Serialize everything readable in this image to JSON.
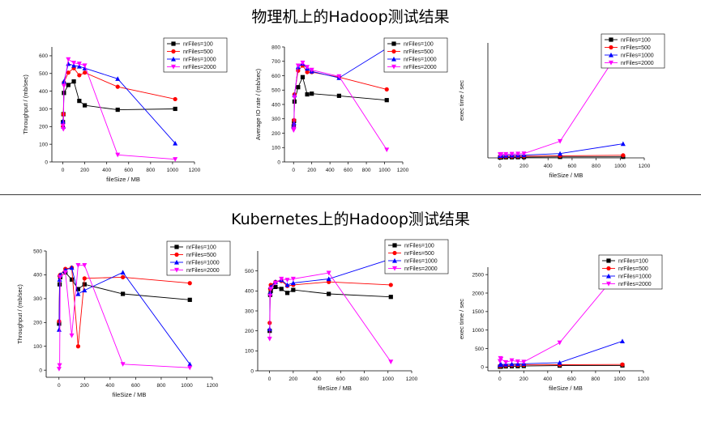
{
  "titles": {
    "top": "物理机上的Hadoop测试结果",
    "bottom": "Kubernetes上的Hadoop测试结果"
  },
  "colors": {
    "nrFiles=100": "#000000",
    "nrFiles=500": "#ff0000",
    "nrFiles=1000": "#0000ff",
    "nrFiles=2000": "#ff00ff"
  },
  "chart_data": [
    {
      "id": "physical-throughput",
      "type": "line",
      "xlabel": "fileSize / MB",
      "ylabel": "Throughput / (mb/sec)",
      "xlim": [
        -100,
        1200
      ],
      "ylim": [
        0,
        650
      ],
      "xticks": [
        0,
        200,
        400,
        600,
        800,
        1000,
        1200
      ],
      "yticks": [
        0,
        100,
        200,
        300,
        400,
        500,
        600
      ],
      "legend_position": "top-right",
      "series": [
        {
          "name": "nrFiles=100",
          "x": [
            1,
            5,
            10,
            50,
            100,
            150,
            200,
            500,
            1024
          ],
          "y": [
            225,
            270,
            390,
            435,
            455,
            345,
            320,
            295,
            300
          ]
        },
        {
          "name": "nrFiles=500",
          "x": [
            1,
            5,
            10,
            50,
            100,
            150,
            200,
            500,
            1024
          ],
          "y": [
            200,
            270,
            450,
            505,
            530,
            490,
            505,
            425,
            355
          ]
        },
        {
          "name": "nrFiles=1000",
          "x": [
            1,
            5,
            10,
            50,
            100,
            150,
            200,
            500,
            1024
          ],
          "y": [
            230,
            200,
            455,
            555,
            545,
            540,
            530,
            470,
            105
          ]
        },
        {
          "name": "nrFiles=2000",
          "x": [
            1,
            5,
            10,
            50,
            100,
            150,
            200,
            500,
            1024
          ],
          "y": [
            205,
            185,
            430,
            580,
            560,
            555,
            545,
            40,
            15
          ]
        }
      ]
    },
    {
      "id": "physical-io-rate",
      "type": "line",
      "xlabel": "",
      "ylabel": "Average IO rate / (mb/sec)",
      "xlim": [
        -100,
        1200
      ],
      "ylim": [
        0,
        800
      ],
      "xticks": [
        0,
        200,
        400,
        600,
        800,
        1000,
        1200
      ],
      "yticks": [
        0,
        100,
        200,
        300,
        400,
        500,
        600,
        700,
        800
      ],
      "legend_position": "top-right",
      "series": [
        {
          "name": "nrFiles=100",
          "x": [
            1,
            5,
            10,
            50,
            100,
            150,
            200,
            500,
            1024
          ],
          "y": [
            245,
            285,
            420,
            520,
            590,
            470,
            475,
            460,
            430
          ]
        },
        {
          "name": "nrFiles=500",
          "x": [
            1,
            5,
            10,
            50,
            100,
            150,
            200,
            500,
            1024
          ],
          "y": [
            260,
            290,
            470,
            635,
            670,
            625,
            625,
            590,
            505
          ]
        },
        {
          "name": "nrFiles=1000",
          "x": [
            1,
            5,
            10,
            50,
            100,
            150,
            200,
            500,
            1024
          ],
          "y": [
            250,
            270,
            465,
            660,
            685,
            650,
            630,
            585,
            790
          ]
        },
        {
          "name": "nrFiles=2000",
          "x": [
            1,
            5,
            10,
            50,
            100,
            150,
            200,
            500,
            1024
          ],
          "y": [
            220,
            230,
            450,
            670,
            690,
            660,
            640,
            595,
            85
          ]
        }
      ]
    },
    {
      "id": "physical-exec-time",
      "type": "line",
      "xlabel": "fileSize / MB",
      "ylabel": "exec time / sec",
      "xlim": [
        -100,
        1200
      ],
      "ylim": [
        0,
        2700
      ],
      "xticks": [
        0,
        200,
        400,
        600,
        800,
        1000,
        1200
      ],
      "yticks": [],
      "legend_position": "top-right",
      "series": [
        {
          "name": "nrFiles=100",
          "x": [
            1,
            5,
            10,
            50,
            100,
            150,
            200,
            500,
            1024
          ],
          "y": [
            10,
            10,
            12,
            14,
            15,
            16,
            18,
            22,
            25
          ]
        },
        {
          "name": "nrFiles=500",
          "x": [
            1,
            5,
            10,
            50,
            100,
            150,
            200,
            500,
            1024
          ],
          "y": [
            30,
            30,
            30,
            32,
            35,
            38,
            40,
            50,
            60
          ]
        },
        {
          "name": "nrFiles=1000",
          "x": [
            1,
            5,
            10,
            50,
            100,
            150,
            200,
            500,
            1024
          ],
          "y": [
            50,
            50,
            55,
            55,
            60,
            60,
            65,
            100,
            330
          ]
        },
        {
          "name": "nrFiles=2000",
          "x": [
            1,
            5,
            10,
            50,
            100,
            150,
            200,
            500,
            1024
          ],
          "y": [
            80,
            80,
            85,
            85,
            90,
            95,
            100,
            390,
            2650
          ]
        }
      ]
    },
    {
      "id": "k8s-throughput",
      "type": "line",
      "xlabel": "fileSize / MB",
      "ylabel": "Throughput / (mb/sec)",
      "xlim": [
        -100,
        1200
      ],
      "ylim": [
        -30,
        500
      ],
      "xticks": [
        0,
        200,
        400,
        600,
        800,
        1000,
        1200
      ],
      "yticks": [
        0,
        100,
        200,
        300,
        400,
        500
      ],
      "legend_position": "top-right",
      "series": [
        {
          "name": "nrFiles=100",
          "x": [
            1,
            5,
            10,
            50,
            100,
            150,
            200,
            500,
            1024
          ],
          "y": [
            195,
            360,
            390,
            410,
            380,
            340,
            360,
            320,
            295
          ]
        },
        {
          "name": "nrFiles=500",
          "x": [
            1,
            5,
            10,
            50,
            100,
            150,
            200,
            500,
            1024
          ],
          "y": [
            205,
            395,
            400,
            425,
            430,
            100,
            385,
            390,
            365
          ]
        },
        {
          "name": "nrFiles=1000",
          "x": [
            1,
            5,
            10,
            50,
            100,
            150,
            200,
            500,
            1024
          ],
          "y": [
            170,
            380,
            400,
            420,
            430,
            320,
            335,
            410,
            25
          ]
        },
        {
          "name": "nrFiles=2000",
          "x": [
            1,
            5,
            10,
            50,
            100,
            150,
            200,
            500,
            1024
          ],
          "y": [
            5,
            20,
            390,
            410,
            145,
            440,
            440,
            25,
            10
          ]
        }
      ]
    },
    {
      "id": "k8s-io-rate",
      "type": "line",
      "xlabel": "fileSize / MB",
      "ylabel": "",
      "xlim": [
        -100,
        1200
      ],
      "ylim": [
        0,
        600
      ],
      "xticks": [
        0,
        200,
        400,
        600,
        800,
        1000,
        1200
      ],
      "yticks": [
        0,
        100,
        200,
        300,
        400,
        500
      ],
      "legend_position": "top-right",
      "series": [
        {
          "name": "nrFiles=100",
          "x": [
            1,
            5,
            10,
            50,
            100,
            150,
            200,
            500,
            1024
          ],
          "y": [
            200,
            380,
            400,
            420,
            410,
            390,
            405,
            385,
            370
          ]
        },
        {
          "name": "nrFiles=500",
          "x": [
            1,
            5,
            10,
            50,
            100,
            150,
            200,
            500,
            1024
          ],
          "y": [
            240,
            410,
            430,
            445,
            450,
            425,
            430,
            445,
            430
          ]
        },
        {
          "name": "nrFiles=1000",
          "x": [
            1,
            5,
            10,
            50,
            100,
            150,
            200,
            500,
            1024
          ],
          "y": [
            210,
            390,
            420,
            445,
            455,
            430,
            440,
            460,
            560
          ]
        },
        {
          "name": "nrFiles=2000",
          "x": [
            1,
            5,
            10,
            50,
            100,
            150,
            200,
            500,
            1024
          ],
          "y": [
            160,
            375,
            410,
            440,
            460,
            455,
            460,
            490,
            45
          ]
        }
      ]
    },
    {
      "id": "k8s-exec-time",
      "type": "line",
      "xlabel": "fileSize / MB",
      "ylabel": "exec time / sec",
      "xlim": [
        -100,
        1200
      ],
      "ylim": [
        -100,
        2700
      ],
      "xticks": [
        0,
        200,
        400,
        600,
        800,
        1000,
        1200
      ],
      "yticks": [
        0,
        500,
        1000,
        1500,
        2000,
        2500
      ],
      "legend_position": "top-right",
      "series": [
        {
          "name": "nrFiles=100",
          "x": [
            1,
            5,
            10,
            50,
            100,
            150,
            200,
            500,
            1024
          ],
          "y": [
            10,
            12,
            15,
            20,
            22,
            25,
            30,
            40,
            45
          ]
        },
        {
          "name": "nrFiles=500",
          "x": [
            1,
            5,
            10,
            50,
            100,
            150,
            200,
            500,
            1024
          ],
          "y": [
            30,
            35,
            40,
            45,
            50,
            55,
            60,
            65,
            70
          ]
        },
        {
          "name": "nrFiles=1000",
          "x": [
            1,
            5,
            10,
            50,
            100,
            150,
            200,
            500,
            1024
          ],
          "y": [
            60,
            65,
            70,
            75,
            80,
            85,
            90,
            120,
            700
          ]
        },
        {
          "name": "nrFiles=2000",
          "x": [
            1,
            5,
            10,
            50,
            100,
            150,
            200,
            500,
            1024
          ],
          "y": [
            160,
            240,
            220,
            130,
            180,
            150,
            140,
            660,
            2700
          ]
        }
      ]
    }
  ]
}
